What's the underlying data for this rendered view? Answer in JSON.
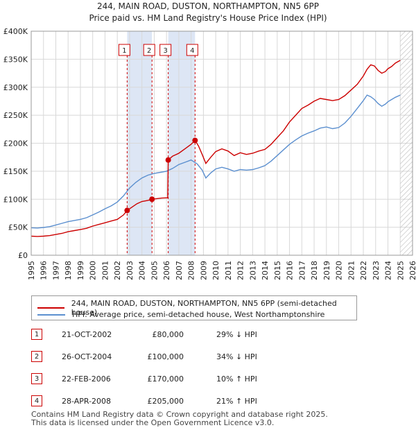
{
  "header": {
    "title_line1": "244, MAIN ROAD, DUSTON, NORTHAMPTON, NN5 6PP",
    "title_line2": "Price paid vs. HM Land Registry's House Price Index (HPI)"
  },
  "colors": {
    "red": "#cc0000",
    "blue": "#5b8fcf",
    "band": "#dde6f5",
    "grid": "#d8d8d8"
  },
  "chart_data": {
    "type": "line",
    "title": "244, MAIN ROAD, DUSTON, NORTHAMPTON, NN5 6PP",
    "xlim": [
      1995,
      2026
    ],
    "ylim": [
      0,
      400000
    ],
    "x_ticks": [
      1995,
      1996,
      1997,
      1998,
      1999,
      2000,
      2001,
      2002,
      2003,
      2004,
      2005,
      2006,
      2007,
      2008,
      2009,
      2010,
      2011,
      2012,
      2013,
      2014,
      2015,
      2016,
      2017,
      2018,
      2019,
      2020,
      2021,
      2022,
      2023,
      2024,
      2025,
      2026
    ],
    "y_ticks": [
      {
        "value": 0,
        "label": "£0"
      },
      {
        "value": 50000,
        "label": "£50K"
      },
      {
        "value": 100000,
        "label": "£100K"
      },
      {
        "value": 150000,
        "label": "£150K"
      },
      {
        "value": 200000,
        "label": "£200K"
      },
      {
        "value": 250000,
        "label": "£250K"
      },
      {
        "value": 300000,
        "label": "£300K"
      },
      {
        "value": 350000,
        "label": "£350K"
      },
      {
        "value": 400000,
        "label": "£400K"
      }
    ],
    "shaded_ranges": [
      [
        2002.8,
        2004.82
      ],
      [
        2006.14,
        2008.32
      ]
    ],
    "future_hatch_from": 2025.0,
    "series": [
      {
        "name": "244, MAIN ROAD, DUSTON, NORTHAMPTON, NN5 6PP (semi-detached house)",
        "color": "#cc0000",
        "x": [
          1995.0,
          1995.5,
          1996.0,
          1996.5,
          1997.0,
          1997.5,
          1998.0,
          1998.5,
          1999.0,
          1999.5,
          2000.0,
          2000.5,
          2001.0,
          2001.5,
          2002.0,
          2002.5,
          2002.8,
          2003.2,
          2003.6,
          2004.0,
          2004.5,
          2004.82,
          2005.2,
          2005.6,
          2006.1,
          2006.14,
          2006.5,
          2007.0,
          2007.5,
          2008.0,
          2008.32,
          2008.6,
          2008.9,
          2009.2,
          2009.6,
          2010.0,
          2010.5,
          2011.0,
          2011.5,
          2012.0,
          2012.5,
          2013.0,
          2013.5,
          2014.0,
          2014.5,
          2015.0,
          2015.5,
          2016.0,
          2016.5,
          2017.0,
          2017.5,
          2018.0,
          2018.5,
          2019.0,
          2019.5,
          2020.0,
          2020.5,
          2021.0,
          2021.5,
          2022.0,
          2022.3,
          2022.6,
          2022.9,
          2023.2,
          2023.5,
          2023.8,
          2024.0,
          2024.3,
          2024.6,
          2025.0
        ],
        "y": [
          34000,
          33500,
          34000,
          35000,
          37000,
          39000,
          42000,
          44000,
          46000,
          48000,
          52000,
          55000,
          58000,
          61000,
          64000,
          72000,
          80000,
          86000,
          92000,
          96000,
          98000,
          100000,
          101000,
          102000,
          102500,
          170000,
          177000,
          182000,
          190000,
          198000,
          205000,
          195000,
          180000,
          164000,
          175000,
          185000,
          190000,
          186000,
          178000,
          183000,
          180000,
          182000,
          186000,
          189000,
          198000,
          210000,
          222000,
          238000,
          250000,
          262000,
          268000,
          275000,
          280000,
          278000,
          276000,
          278000,
          285000,
          295000,
          305000,
          320000,
          332000,
          340000,
          338000,
          330000,
          325000,
          328000,
          333000,
          337000,
          343000,
          348000
        ]
      },
      {
        "name": "HPI: Average price, semi-detached house, West Northamptonshire",
        "color": "#5b8fcf",
        "x": [
          1995.0,
          1995.5,
          1996.0,
          1996.5,
          1997.0,
          1997.5,
          1998.0,
          1998.5,
          1999.0,
          1999.5,
          2000.0,
          2000.5,
          2001.0,
          2001.5,
          2002.0,
          2002.5,
          2003.0,
          2003.5,
          2004.0,
          2004.5,
          2005.0,
          2005.5,
          2006.0,
          2006.5,
          2007.0,
          2007.5,
          2008.0,
          2008.5,
          2008.9,
          2009.2,
          2009.6,
          2010.0,
          2010.5,
          2011.0,
          2011.5,
          2012.0,
          2012.5,
          2013.0,
          2013.5,
          2014.0,
          2014.5,
          2015.0,
          2015.5,
          2016.0,
          2016.5,
          2017.0,
          2017.5,
          2018.0,
          2018.5,
          2019.0,
          2019.5,
          2020.0,
          2020.5,
          2021.0,
          2021.5,
          2022.0,
          2022.3,
          2022.6,
          2022.9,
          2023.2,
          2023.5,
          2023.8,
          2024.0,
          2024.3,
          2024.6,
          2025.0
        ],
        "y": [
          49000,
          48500,
          49500,
          51000,
          54000,
          57000,
          60000,
          62000,
          64000,
          67000,
          72000,
          77000,
          83000,
          88000,
          95000,
          106000,
          120000,
          130000,
          138000,
          143000,
          146000,
          148000,
          150000,
          155000,
          162000,
          166000,
          170000,
          163000,
          152000,
          138000,
          147000,
          154000,
          157000,
          154000,
          150000,
          153000,
          152000,
          153000,
          156000,
          160000,
          168000,
          178000,
          188000,
          198000,
          206000,
          213000,
          218000,
          222000,
          227000,
          229000,
          226000,
          228000,
          236000,
          248000,
          262000,
          276000,
          286000,
          283000,
          278000,
          271000,
          266000,
          270000,
          274000,
          278000,
          282000,
          286000
        ]
      }
    ],
    "sales": [
      {
        "num": "1",
        "x": 2002.8,
        "price": 80000
      },
      {
        "num": "2",
        "x": 2004.82,
        "price": 100000
      },
      {
        "num": "3",
        "x": 2006.14,
        "price": 170000
      },
      {
        "num": "4",
        "x": 2008.32,
        "price": 205000
      }
    ]
  },
  "legend": {
    "red_label": "244, MAIN ROAD, DUSTON, NORTHAMPTON, NN5 6PP (semi-detached house)",
    "blue_label": "HPI: Average price, semi-detached house, West Northamptonshire"
  },
  "sales_table": [
    {
      "num": "1",
      "date": "21-OCT-2002",
      "price": "£80,000",
      "hpi": "29% ↓ HPI"
    },
    {
      "num": "2",
      "date": "26-OCT-2004",
      "price": "£100,000",
      "hpi": "34% ↓ HPI"
    },
    {
      "num": "3",
      "date": "22-FEB-2006",
      "price": "£170,000",
      "hpi": "10% ↑ HPI"
    },
    {
      "num": "4",
      "date": "28-APR-2008",
      "price": "£205,000",
      "hpi": "21% ↑ HPI"
    }
  ],
  "footer": {
    "line1": "Contains HM Land Registry data © Crown copyright and database right 2025.",
    "line2": "This data is licensed under the Open Government Licence v3.0."
  }
}
